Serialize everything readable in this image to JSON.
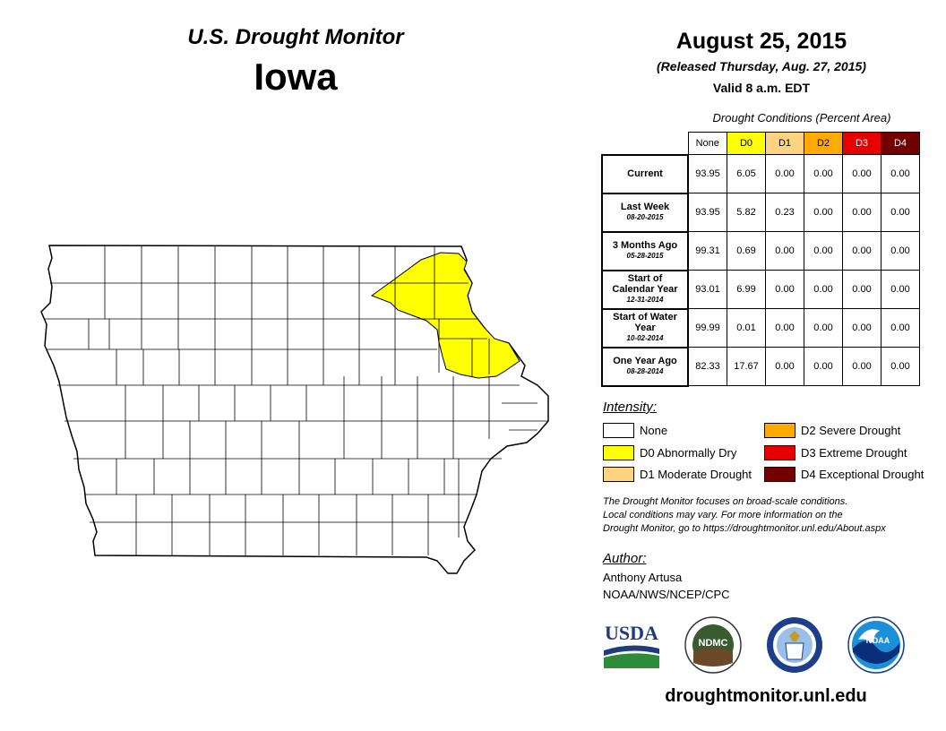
{
  "header": {
    "subtitle": "U.S. Drought Monitor",
    "state": "Iowa",
    "date": "August 25, 2015",
    "released": "(Released Thursday, Aug. 27, 2015)",
    "valid": "Valid 8 a.m. EDT"
  },
  "table": {
    "caption": "Drought Conditions (Percent Area)",
    "columns": [
      "None",
      "D0",
      "D1",
      "D2",
      "D3",
      "D4"
    ],
    "column_colors": [
      "#ffffff",
      "#ffff00",
      "#fcd37f",
      "#ffaa00",
      "#e60000",
      "#730000"
    ],
    "column_text_colors": [
      "#000000",
      "#000000",
      "#000000",
      "#000000",
      "#ffffff",
      "#ffffff"
    ],
    "rows": [
      {
        "label": "Current",
        "date": "",
        "values": [
          "93.95",
          "6.05",
          "0.00",
          "0.00",
          "0.00",
          "0.00"
        ]
      },
      {
        "label": "Last Week",
        "date": "08-20-2015",
        "values": [
          "93.95",
          "5.82",
          "0.23",
          "0.00",
          "0.00",
          "0.00"
        ]
      },
      {
        "label": "3 Months Ago",
        "date": "05-28-2015",
        "values": [
          "99.31",
          "0.69",
          "0.00",
          "0.00",
          "0.00",
          "0.00"
        ]
      },
      {
        "label": "Start of Calendar Year",
        "date": "12-31-2014",
        "values": [
          "93.01",
          "6.99",
          "0.00",
          "0.00",
          "0.00",
          "0.00"
        ]
      },
      {
        "label": "Start of Water Year",
        "date": "10-02-2014",
        "values": [
          "99.99",
          "0.01",
          "0.00",
          "0.00",
          "0.00",
          "0.00"
        ]
      },
      {
        "label": "One Year Ago",
        "date": "08-28-2014",
        "values": [
          "82.33",
          "17.67",
          "0.00",
          "0.00",
          "0.00",
          "0.00"
        ]
      }
    ]
  },
  "legend": {
    "title": "Intensity:",
    "items": [
      {
        "label": "None",
        "color": "#ffffff"
      },
      {
        "label": "D0 Abnormally Dry",
        "color": "#ffff00"
      },
      {
        "label": "D1 Moderate Drought",
        "color": "#fcd37f"
      },
      {
        "label": "D2 Severe Drought",
        "color": "#ffaa00"
      },
      {
        "label": "D3 Extreme Drought",
        "color": "#e60000"
      },
      {
        "label": "D4 Exceptional Drought",
        "color": "#730000"
      }
    ]
  },
  "note": {
    "line1": "The Drought Monitor focuses on broad-scale conditions.",
    "line2": "Local conditions may vary. For more information on the",
    "line3": "Drought Monitor, go to https://droughtmonitor.unl.edu/About.aspx"
  },
  "author": {
    "title": "Author:",
    "name": "Anthony Artusa",
    "org": "NOAA/NWS/NCEP/CPC"
  },
  "logos": {
    "usda": "USDA",
    "ndmc": "NDMC",
    "doc": "commerce-seal",
    "noaa": "NOAA"
  },
  "map": {
    "fill_none": "#ffffff",
    "fill_d0": "#ffff00",
    "stroke": "#000000"
  },
  "footer": {
    "url": "droughtmonitor.unl.edu"
  }
}
